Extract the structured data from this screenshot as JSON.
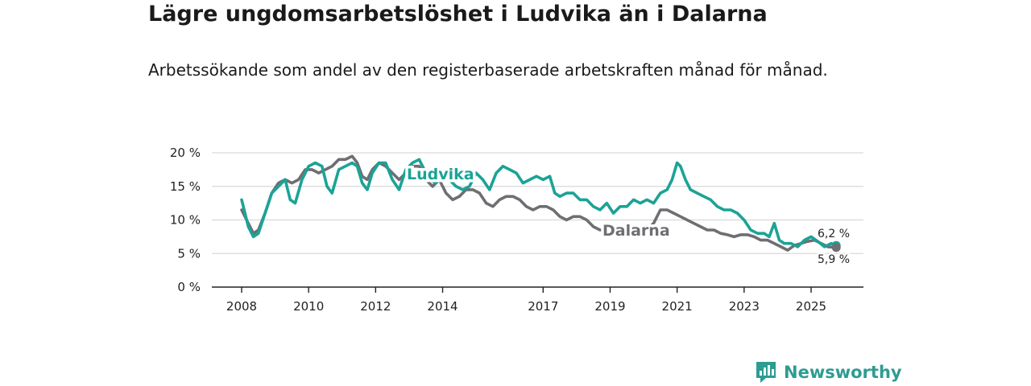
{
  "title": "Lägre ungdomsarbetslöshet i Ludvika än i Dalarna",
  "subtitle": "Arbetssökande som andel av den registerbaserade arbetskraften månad för månad.",
  "brand": "Newsworthy",
  "colors": {
    "ludvika": "#1ba396",
    "dalarna": "#6e6e73",
    "grid": "#d9d9d9",
    "axis": "#222222",
    "brand": "#2e9c92"
  },
  "chart_data": {
    "type": "line",
    "title": "Lägre ungdomsarbetslöshet i Ludvika än i Dalarna",
    "xlabel": "",
    "ylabel": "",
    "xlim": [
      2007.9,
      2026.5
    ],
    "ylim": [
      0,
      20
    ],
    "y_ticks": [
      0,
      5,
      10,
      15,
      20
    ],
    "y_tick_labels": [
      "0 %",
      "5 %",
      "10 %",
      "15 %",
      "20 %"
    ],
    "x_ticks": [
      2008,
      2010,
      2012,
      2014,
      2017,
      2019,
      2021,
      2023,
      2025
    ],
    "x_tick_labels": [
      "2008",
      "2010",
      "2012",
      "2014",
      "2017",
      "2019",
      "2021",
      "2023",
      "2025"
    ],
    "grid": true,
    "series": [
      {
        "name": "Ludvika",
        "end_label": "6,2 %",
        "points": [
          [
            2008.0,
            13
          ],
          [
            2008.2,
            9
          ],
          [
            2008.35,
            7.5
          ],
          [
            2008.5,
            8
          ],
          [
            2008.7,
            11
          ],
          [
            2008.9,
            14
          ],
          [
            2009.1,
            15
          ],
          [
            2009.3,
            16
          ],
          [
            2009.45,
            13
          ],
          [
            2009.6,
            12.5
          ],
          [
            2009.8,
            16
          ],
          [
            2010.0,
            18
          ],
          [
            2010.2,
            18.5
          ],
          [
            2010.4,
            18
          ],
          [
            2010.55,
            15
          ],
          [
            2010.7,
            14
          ],
          [
            2010.9,
            17.5
          ],
          [
            2011.1,
            18
          ],
          [
            2011.3,
            18.5
          ],
          [
            2011.45,
            18
          ],
          [
            2011.6,
            15.5
          ],
          [
            2011.75,
            14.5
          ],
          [
            2011.9,
            17
          ],
          [
            2012.1,
            18.5
          ],
          [
            2012.3,
            18.5
          ],
          [
            2012.5,
            16
          ],
          [
            2012.7,
            14.5
          ],
          [
            2012.9,
            17.5
          ],
          [
            2013.1,
            18.5
          ],
          [
            2013.3,
            19
          ],
          [
            2013.4,
            18
          ],
          [
            2013.6,
            16
          ],
          [
            2013.8,
            15.5
          ],
          [
            2014.0,
            16.5
          ],
          [
            2014.2,
            16
          ],
          [
            2014.4,
            15
          ],
          [
            2014.6,
            14.5
          ],
          [
            2014.8,
            15
          ],
          [
            2015.0,
            17
          ],
          [
            2015.2,
            16
          ],
          [
            2015.4,
            14.5
          ],
          [
            2015.6,
            17
          ],
          [
            2015.8,
            18
          ],
          [
            2016.0,
            17.5
          ],
          [
            2016.2,
            17
          ],
          [
            2016.4,
            15.5
          ],
          [
            2016.6,
            16
          ],
          [
            2016.8,
            16.5
          ],
          [
            2017.0,
            16
          ],
          [
            2017.2,
            16.5
          ],
          [
            2017.35,
            14
          ],
          [
            2017.5,
            13.5
          ],
          [
            2017.7,
            14
          ],
          [
            2017.9,
            14
          ],
          [
            2018.1,
            13
          ],
          [
            2018.3,
            13
          ],
          [
            2018.5,
            12
          ],
          [
            2018.7,
            11.5
          ],
          [
            2018.9,
            12.5
          ],
          [
            2019.1,
            11
          ],
          [
            2019.3,
            12
          ],
          [
            2019.5,
            12
          ],
          [
            2019.7,
            13
          ],
          [
            2019.9,
            12.5
          ],
          [
            2020.1,
            13
          ],
          [
            2020.3,
            12.5
          ],
          [
            2020.5,
            14
          ],
          [
            2020.7,
            14.5
          ],
          [
            2020.85,
            16
          ],
          [
            2021.0,
            18.5
          ],
          [
            2021.1,
            18
          ],
          [
            2021.25,
            16
          ],
          [
            2021.4,
            14.5
          ],
          [
            2021.6,
            14
          ],
          [
            2021.8,
            13.5
          ],
          [
            2022.0,
            13
          ],
          [
            2022.2,
            12
          ],
          [
            2022.4,
            11.5
          ],
          [
            2022.6,
            11.5
          ],
          [
            2022.8,
            11
          ],
          [
            2023.0,
            10
          ],
          [
            2023.2,
            8.5
          ],
          [
            2023.4,
            8
          ],
          [
            2023.6,
            8
          ],
          [
            2023.75,
            7.5
          ],
          [
            2023.9,
            9.5
          ],
          [
            2024.05,
            7
          ],
          [
            2024.2,
            6.5
          ],
          [
            2024.4,
            6.5
          ],
          [
            2024.6,
            6
          ],
          [
            2024.8,
            7
          ],
          [
            2025.0,
            7.5
          ],
          [
            2025.2,
            6.8
          ],
          [
            2025.4,
            6
          ],
          [
            2025.6,
            6.5
          ],
          [
            2025.75,
            6.2
          ]
        ]
      },
      {
        "name": "Dalarna",
        "end_label": "5,9 %",
        "points": [
          [
            2008.0,
            11.5
          ],
          [
            2008.2,
            9.5
          ],
          [
            2008.35,
            8
          ],
          [
            2008.5,
            8.5
          ],
          [
            2008.7,
            11
          ],
          [
            2008.9,
            14
          ],
          [
            2009.1,
            15.5
          ],
          [
            2009.3,
            16
          ],
          [
            2009.5,
            15.5
          ],
          [
            2009.7,
            16
          ],
          [
            2009.9,
            17.5
          ],
          [
            2010.1,
            17.5
          ],
          [
            2010.3,
            17
          ],
          [
            2010.5,
            17.5
          ],
          [
            2010.7,
            18
          ],
          [
            2010.9,
            19
          ],
          [
            2011.1,
            19
          ],
          [
            2011.3,
            19.5
          ],
          [
            2011.45,
            18.5
          ],
          [
            2011.6,
            16.5
          ],
          [
            2011.75,
            16
          ],
          [
            2011.9,
            17.5
          ],
          [
            2012.1,
            18.5
          ],
          [
            2012.3,
            18
          ],
          [
            2012.5,
            17
          ],
          [
            2012.7,
            16
          ],
          [
            2012.9,
            17
          ],
          [
            2013.1,
            18
          ],
          [
            2013.3,
            18
          ],
          [
            2013.5,
            16
          ],
          [
            2013.7,
            15
          ],
          [
            2013.9,
            16
          ],
          [
            2014.1,
            14
          ],
          [
            2014.3,
            13
          ],
          [
            2014.5,
            13.5
          ],
          [
            2014.7,
            14.5
          ],
          [
            2014.9,
            14.5
          ],
          [
            2015.1,
            14
          ],
          [
            2015.3,
            12.5
          ],
          [
            2015.5,
            12
          ],
          [
            2015.7,
            13
          ],
          [
            2015.9,
            13.5
          ],
          [
            2016.1,
            13.5
          ],
          [
            2016.3,
            13
          ],
          [
            2016.5,
            12
          ],
          [
            2016.7,
            11.5
          ],
          [
            2016.9,
            12
          ],
          [
            2017.1,
            12
          ],
          [
            2017.3,
            11.5
          ],
          [
            2017.5,
            10.5
          ],
          [
            2017.7,
            10
          ],
          [
            2017.9,
            10.5
          ],
          [
            2018.1,
            10.5
          ],
          [
            2018.3,
            10
          ],
          [
            2018.5,
            9
          ],
          [
            2018.7,
            8.5
          ],
          [
            2018.9,
            8.5
          ],
          [
            2019.1,
            8
          ],
          [
            2019.3,
            8.2
          ],
          [
            2019.5,
            8.3
          ],
          [
            2019.7,
            8.5
          ],
          [
            2019.9,
            8.5
          ],
          [
            2020.1,
            8.6
          ],
          [
            2020.3,
            9.5
          ],
          [
            2020.5,
            11.5
          ],
          [
            2020.7,
            11.5
          ],
          [
            2020.9,
            11
          ],
          [
            2021.1,
            10.5
          ],
          [
            2021.3,
            10
          ],
          [
            2021.5,
            9.5
          ],
          [
            2021.7,
            9
          ],
          [
            2021.9,
            8.5
          ],
          [
            2022.1,
            8.5
          ],
          [
            2022.3,
            8
          ],
          [
            2022.5,
            7.8
          ],
          [
            2022.7,
            7.5
          ],
          [
            2022.9,
            7.8
          ],
          [
            2023.1,
            7.8
          ],
          [
            2023.3,
            7.5
          ],
          [
            2023.5,
            7
          ],
          [
            2023.7,
            7
          ],
          [
            2023.9,
            6.5
          ],
          [
            2024.1,
            6
          ],
          [
            2024.3,
            5.5
          ],
          [
            2024.5,
            6.2
          ],
          [
            2024.7,
            6.5
          ],
          [
            2024.9,
            6.8
          ],
          [
            2025.1,
            7
          ],
          [
            2025.3,
            6.5
          ],
          [
            2025.5,
            6
          ],
          [
            2025.75,
            5.9
          ]
        ]
      }
    ]
  }
}
